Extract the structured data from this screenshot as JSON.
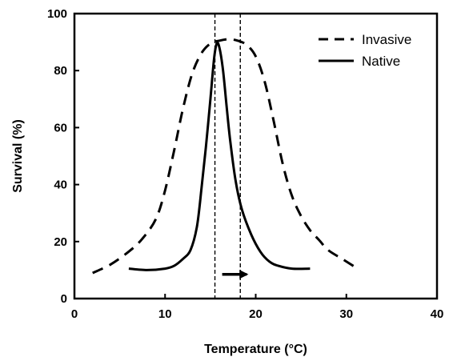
{
  "chart_data": {
    "type": "line",
    "title": "",
    "xlabel": "Temperature (°C)",
    "ylabel": "Survival (%)",
    "xlim": [
      0,
      40
    ],
    "ylim": [
      0,
      100
    ],
    "xticks": [
      0,
      10,
      20,
      30,
      40
    ],
    "yticks": [
      0,
      20,
      40,
      60,
      80,
      100
    ],
    "grid": false,
    "legend": "top-right",
    "series": [
      {
        "name": "Invasive",
        "style": "dashed",
        "color": "#000000",
        "points": [
          [
            2,
            9
          ],
          [
            4,
            12
          ],
          [
            6,
            16.5
          ],
          [
            7.5,
            21
          ],
          [
            9,
            28
          ],
          [
            10,
            38
          ],
          [
            11,
            52
          ],
          [
            12,
            67
          ],
          [
            13,
            79
          ],
          [
            14,
            86
          ],
          [
            15,
            89.5
          ],
          [
            16,
            90.5
          ],
          [
            17,
            91
          ],
          [
            18,
            90.5
          ],
          [
            19,
            89
          ],
          [
            20,
            85
          ],
          [
            21,
            76
          ],
          [
            22,
            62
          ],
          [
            23,
            47
          ],
          [
            24,
            36
          ],
          [
            25,
            29
          ],
          [
            26,
            24
          ],
          [
            27,
            20.5
          ],
          [
            28,
            17
          ],
          [
            29.5,
            14
          ],
          [
            31,
            11
          ]
        ]
      },
      {
        "name": "Native",
        "style": "solid",
        "color": "#000000",
        "points": [
          [
            6,
            10.5
          ],
          [
            8,
            10
          ],
          [
            10,
            10.5
          ],
          [
            11,
            11.5
          ],
          [
            12,
            14
          ],
          [
            12.8,
            17
          ],
          [
            13.5,
            25
          ],
          [
            14,
            38
          ],
          [
            14.5,
            53
          ],
          [
            15,
            70
          ],
          [
            15.4,
            84
          ],
          [
            15.7,
            89.5
          ],
          [
            16,
            88
          ],
          [
            16.4,
            80
          ],
          [
            16.8,
            67
          ],
          [
            17.2,
            55
          ],
          [
            17.8,
            41
          ],
          [
            18.5,
            31
          ],
          [
            19.5,
            22.5
          ],
          [
            20.5,
            16.5
          ],
          [
            21.5,
            13
          ],
          [
            22.5,
            11.5
          ],
          [
            24,
            10.5
          ],
          [
            26,
            10.5
          ]
        ]
      }
    ],
    "annotations": {
      "vertical_lines": [
        15.5,
        18.3
      ],
      "arrow": {
        "from": [
          16.3,
          8.5
        ],
        "to": [
          19.0,
          8.5
        ]
      }
    }
  }
}
